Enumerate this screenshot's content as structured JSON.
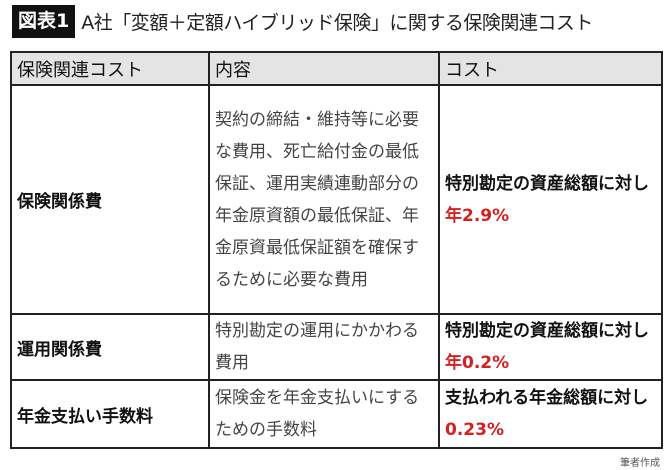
{
  "header": {
    "badge": "図表1",
    "title": "A社「変額＋定額ハイブリッド保険」に関する保険関連コスト"
  },
  "table": {
    "columns": [
      "保険関連コスト",
      "内容",
      "コスト"
    ],
    "rows": [
      {
        "name": "保険関係費",
        "description": "契約の締結・維持等に必要な費用、死亡給付金の最低保証、運用実績連動部分の年金原資額の最低保証、年金原資最低保証額を確保するために必要な費用",
        "cost_prefix": "特別勘定の資産総額に対し",
        "cost_value": "年2.9%"
      },
      {
        "name": "運用関係費",
        "description": "特別勘定の運用にかかわる費用",
        "cost_prefix": "特別勘定の資産総額に対し",
        "cost_value": "年0.2%"
      },
      {
        "name": "年金支払い手数料",
        "description": "保険金を年金支払いにするための手数料",
        "cost_prefix": "支払われる年金総額に対し",
        "cost_value": "0.23%"
      }
    ]
  },
  "footer": {
    "source": "筆者作成"
  },
  "colors": {
    "accent_red": "#d42020",
    "header_bg": "#e4e4e4",
    "badge_bg": "#111111"
  }
}
